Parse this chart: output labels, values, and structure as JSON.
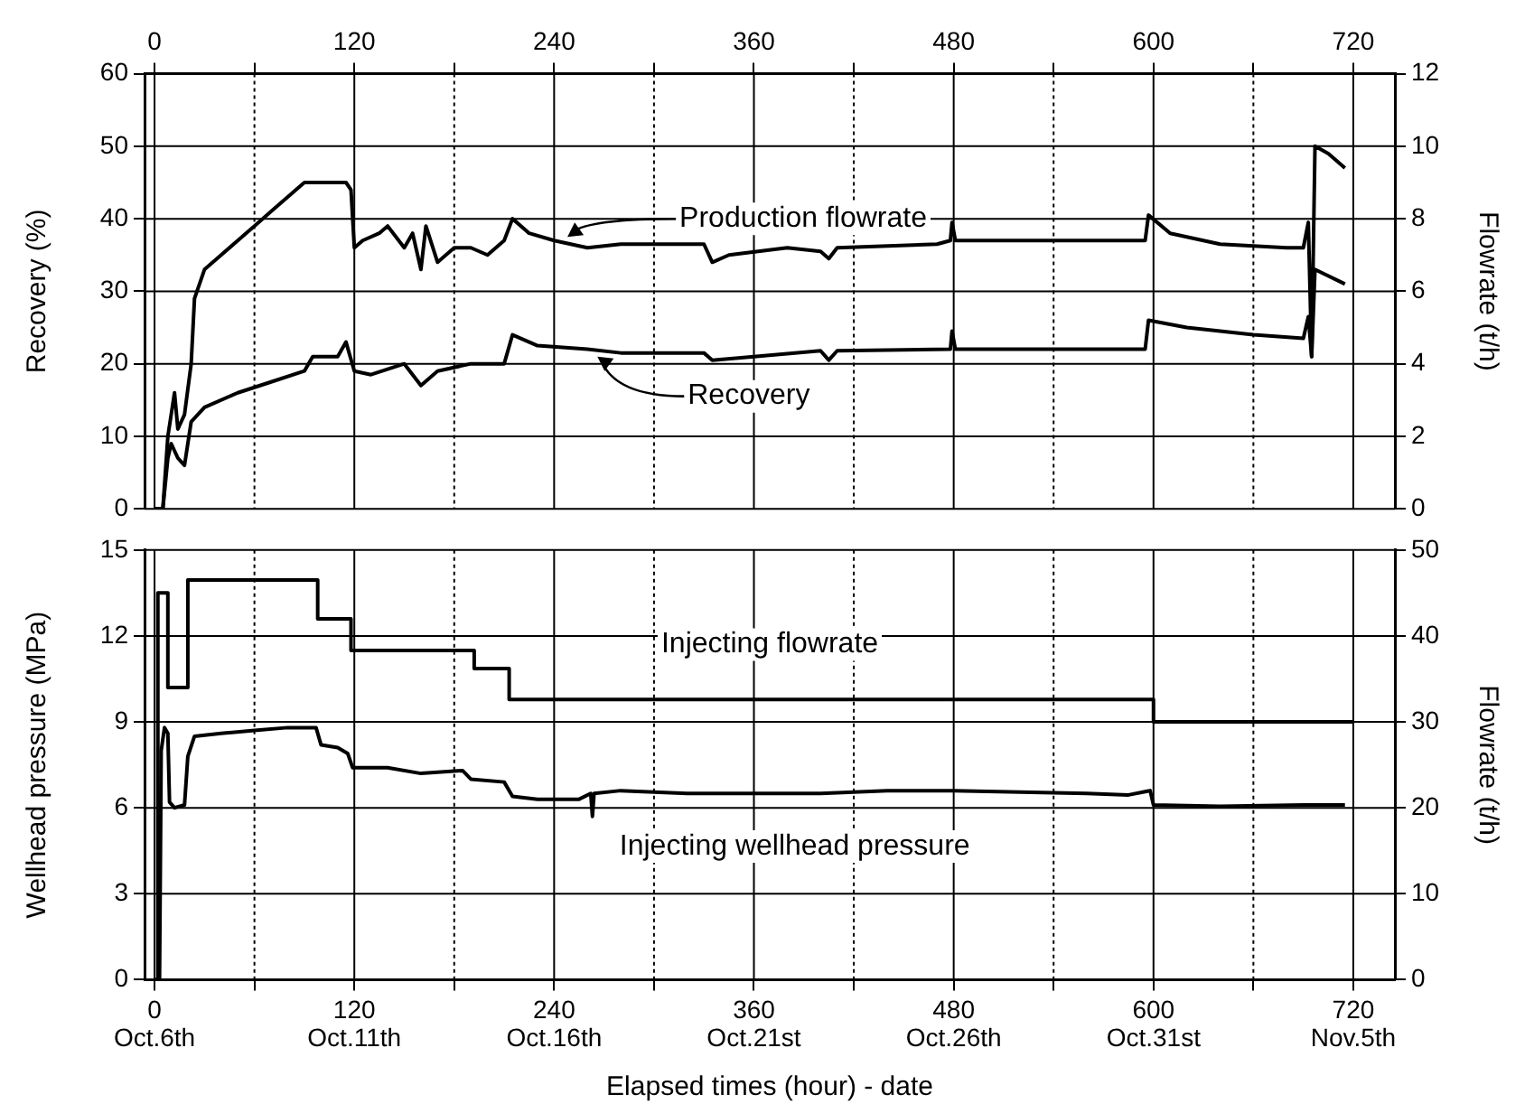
{
  "chart_data": [
    {
      "type": "line",
      "ylabel": "Recovery (%)",
      "y2label": "Flowrate (t/h)",
      "xlim": [
        -6,
        745
      ],
      "xticks": [
        0,
        {
          "value": 60,
          "label": null
        },
        120,
        {
          "value": 180,
          "label": null
        },
        240,
        {
          "value": 300,
          "label": null
        },
        360,
        {
          "value": 420,
          "label": null
        },
        480,
        {
          "value": 540,
          "label": null
        },
        600,
        {
          "value": 660,
          "label": null
        },
        720
      ],
      "ylim": [
        0,
        60
      ],
      "yticks": [
        0,
        10,
        20,
        30,
        40,
        50,
        60
      ],
      "y2lim": [
        0,
        12
      ],
      "y2ticks": [
        0,
        2,
        4,
        6,
        8,
        10,
        12
      ],
      "grid": true,
      "marker": "none",
      "series": [
        {
          "axis": "y2",
          "color": "#000000",
          "x": [
            0,
            5,
            8,
            12,
            14,
            18,
            22,
            24,
            30,
            40,
            50,
            60,
            70,
            80,
            90,
            100,
            110,
            115,
            118,
            120,
            125,
            135,
            140,
            150,
            155,
            160,
            163,
            170,
            180,
            190,
            200,
            210,
            215,
            225,
            240,
            260,
            280,
            330,
            335,
            345,
            380,
            400,
            405,
            410,
            470,
            478,
            479,
            481,
            540,
            595,
            597,
            610,
            640,
            680,
            690,
            693,
            695,
            697,
            705,
            715
          ],
          "values": [
            0,
            0,
            2,
            3.2,
            2.2,
            2.6,
            4,
            5.8,
            6.6,
            7,
            7.4,
            7.8,
            8.2,
            8.6,
            9,
            9,
            9,
            9,
            8.8,
            7.2,
            7.4,
            7.6,
            7.8,
            7.2,
            7.6,
            6.6,
            7.8,
            6.8,
            7.2,
            7.2,
            7,
            7.4,
            8,
            7.6,
            7.4,
            7.2,
            7.3,
            7.3,
            6.8,
            7,
            7.2,
            7.1,
            6.9,
            7.2,
            7.3,
            7.4,
            7.9,
            7.4,
            7.4,
            7.4,
            8.1,
            7.6,
            7.3,
            7.2,
            7.2,
            7.9,
            4.2,
            10,
            9.8,
            9.4
          ]
        },
        {
          "axis": "y",
          "color": "#000000",
          "x": [
            0,
            5,
            8,
            10,
            14,
            18,
            22,
            30,
            50,
            70,
            90,
            95,
            110,
            115,
            120,
            130,
            150,
            160,
            170,
            190,
            210,
            215,
            230,
            260,
            280,
            330,
            335,
            360,
            400,
            405,
            410,
            478,
            479,
            481,
            595,
            597,
            620,
            660,
            690,
            693,
            695,
            697,
            715
          ],
          "values": [
            0,
            0,
            7,
            9,
            7,
            6,
            12,
            14,
            16,
            17.5,
            19,
            21,
            21,
            23,
            19,
            18.5,
            20,
            17,
            19,
            20,
            20,
            24,
            22.5,
            22,
            21.5,
            21.5,
            20.5,
            21,
            21.8,
            20.5,
            21.8,
            22,
            24.5,
            22,
            22,
            26,
            25,
            24,
            23.5,
            26.5,
            21,
            33,
            31
          ]
        }
      ],
      "annotations": [
        {
          "text": "Production flowrate",
          "x": 248,
          "y": 37.5
        },
        {
          "text": "Recovery",
          "x": 266,
          "y": 21
        }
      ]
    },
    {
      "type": "line",
      "ylabel": "Wellhead pressure (MPa)",
      "y2label": "Flowrate (t/h)",
      "xlabel": "Elapsed times (hour) - date",
      "xlim": [
        -6,
        745
      ],
      "xticks": [
        0,
        {
          "value": 60,
          "label": null
        },
        120,
        {
          "value": 180,
          "label": null
        },
        240,
        {
          "value": 300,
          "label": null
        },
        360,
        {
          "value": 420,
          "label": null
        },
        480,
        {
          "value": 540,
          "label": null
        },
        600,
        {
          "value": 660,
          "label": null
        },
        720
      ],
      "ylim": [
        0,
        15
      ],
      "yticks": [
        0,
        3,
        6,
        9,
        12,
        15
      ],
      "y2lim": [
        0,
        50
      ],
      "y2ticks": [
        0,
        10,
        20,
        30,
        40,
        50
      ],
      "grid": true,
      "marker": "none",
      "series": [
        {
          "type": "step",
          "axis": "y2",
          "color": "#000000",
          "x": [
            0,
            2,
            8,
            20,
            98,
            118,
            192,
            213,
            600,
            720
          ],
          "values": [
            0,
            45,
            34,
            46.5,
            42,
            38.3,
            36.2,
            32.6,
            30,
            30
          ]
        },
        {
          "axis": "y",
          "color": "#000000",
          "x": [
            0,
            3,
            4,
            6,
            8,
            9,
            12,
            18,
            20,
            24,
            40,
            60,
            80,
            97,
            100,
            110,
            116,
            119,
            140,
            160,
            185,
            190,
            210,
            215,
            230,
            255,
            262,
            263,
            264,
            280,
            320,
            360,
            400,
            440,
            480,
            560,
            585,
            598,
            600,
            640,
            690,
            715
          ],
          "values": [
            0,
            0,
            8,
            8.8,
            8.6,
            6.2,
            6,
            6.1,
            7.8,
            8.5,
            8.6,
            8.7,
            8.8,
            8.8,
            8.2,
            8.1,
            7.9,
            7.4,
            7.4,
            7.2,
            7.3,
            7,
            6.9,
            6.4,
            6.3,
            6.3,
            6.5,
            5.7,
            6.5,
            6.6,
            6.5,
            6.5,
            6.5,
            6.6,
            6.6,
            6.5,
            6.45,
            6.6,
            6.1,
            6.05,
            6.1,
            6.1
          ]
        }
      ],
      "annotations": [
        "Injecting flowrate",
        "Injecting wellhead pressure",
        "Oct.6th",
        "Oct.11th",
        "Oct.16th",
        "Oct.21st",
        "Oct.26th",
        "Oct.31st",
        "Nov.5th"
      ]
    }
  ]
}
